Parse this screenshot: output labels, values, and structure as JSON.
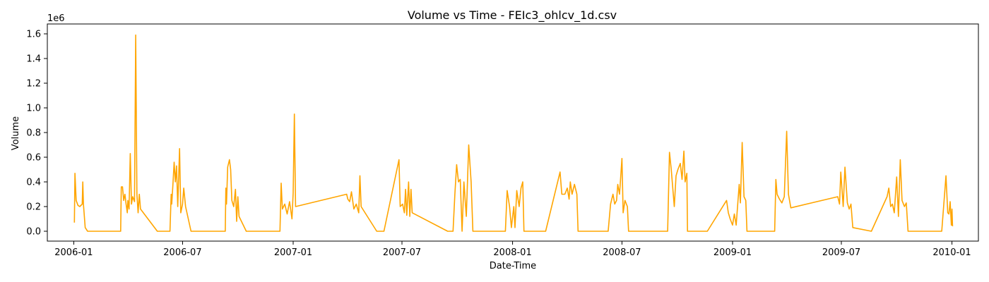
{
  "chart_data": {
    "type": "line",
    "title": "Volume vs Time - FEIc3_ohlcv_1d.csv",
    "xlabel": "Date-Time",
    "ylabel": "Volume",
    "y_offset_label": "1e6",
    "line_color": "#FFA500",
    "grid": false,
    "xlim": [
      "2005-11-18",
      "2010-02-14"
    ],
    "ylim": [
      -0.08,
      1.68
    ],
    "x_ticks": [
      "2006-01",
      "2006-07",
      "2007-01",
      "2007-07",
      "2008-01",
      "2008-07",
      "2009-01",
      "2009-07",
      "2010-01"
    ],
    "y_ticks": [
      "0.0",
      "0.2",
      "0.4",
      "0.6",
      "0.8",
      "1.0",
      "1.2",
      "1.4",
      "1.6"
    ],
    "series": [
      {
        "units": "millions",
        "points": [
          [
            "2006-01-02",
            0.07
          ],
          [
            "2006-01-03",
            0.47
          ],
          [
            "2006-01-05",
            0.25
          ],
          [
            "2006-01-08",
            0.21
          ],
          [
            "2006-01-11",
            0.2
          ],
          [
            "2006-01-15",
            0.22
          ],
          [
            "2006-01-16",
            0.4
          ],
          [
            "2006-01-17",
            0.22
          ],
          [
            "2006-01-20",
            0.03
          ],
          [
            "2006-01-24",
            0.0
          ],
          [
            "2006-03-20",
            0.0
          ],
          [
            "2006-03-21",
            0.36
          ],
          [
            "2006-03-23",
            0.36
          ],
          [
            "2006-03-25",
            0.25
          ],
          [
            "2006-03-27",
            0.3
          ],
          [
            "2006-03-29",
            0.22
          ],
          [
            "2006-03-31",
            0.15
          ],
          [
            "2006-04-01",
            0.25
          ],
          [
            "2006-04-03",
            0.18
          ],
          [
            "2006-04-05",
            0.63
          ],
          [
            "2006-04-07",
            0.22
          ],
          [
            "2006-04-09",
            0.28
          ],
          [
            "2006-04-12",
            0.24
          ],
          [
            "2006-04-14",
            1.59
          ],
          [
            "2006-04-16",
            0.3
          ],
          [
            "2006-04-18",
            0.15
          ],
          [
            "2006-04-20",
            0.3
          ],
          [
            "2006-04-22",
            0.18
          ],
          [
            "2006-05-20",
            0.0
          ],
          [
            "2006-06-10",
            0.0
          ],
          [
            "2006-06-12",
            0.3
          ],
          [
            "2006-06-13",
            0.22
          ],
          [
            "2006-06-15",
            0.38
          ],
          [
            "2006-06-17",
            0.56
          ],
          [
            "2006-06-19",
            0.4
          ],
          [
            "2006-06-21",
            0.53
          ],
          [
            "2006-06-23",
            0.2
          ],
          [
            "2006-06-26",
            0.67
          ],
          [
            "2006-06-28",
            0.15
          ],
          [
            "2006-07-01",
            0.22
          ],
          [
            "2006-07-03",
            0.35
          ],
          [
            "2006-07-06",
            0.2
          ],
          [
            "2006-07-15",
            0.0
          ],
          [
            "2006-09-10",
            0.0
          ],
          [
            "2006-09-11",
            0.35
          ],
          [
            "2006-09-12",
            0.22
          ],
          [
            "2006-09-14",
            0.52
          ],
          [
            "2006-09-17",
            0.58
          ],
          [
            "2006-09-19",
            0.5
          ],
          [
            "2006-09-21",
            0.25
          ],
          [
            "2006-09-24",
            0.2
          ],
          [
            "2006-09-27",
            0.34
          ],
          [
            "2006-09-29",
            0.08
          ],
          [
            "2006-10-01",
            0.28
          ],
          [
            "2006-10-03",
            0.12
          ],
          [
            "2006-10-15",
            0.0
          ],
          [
            "2006-11-25",
            0.0
          ],
          [
            "2006-12-10",
            0.0
          ],
          [
            "2006-12-12",
            0.39
          ],
          [
            "2006-12-14",
            0.18
          ],
          [
            "2006-12-18",
            0.22
          ],
          [
            "2006-12-22",
            0.14
          ],
          [
            "2006-12-26",
            0.24
          ],
          [
            "2006-12-30",
            0.1
          ],
          [
            "2007-01-01",
            0.31
          ],
          [
            "2007-01-03",
            0.95
          ],
          [
            "2007-01-05",
            0.2
          ],
          [
            "2007-03-31",
            0.3
          ],
          [
            "2007-04-02",
            0.26
          ],
          [
            "2007-04-05",
            0.24
          ],
          [
            "2007-04-08",
            0.32
          ],
          [
            "2007-04-12",
            0.18
          ],
          [
            "2007-04-16",
            0.22
          ],
          [
            "2007-04-20",
            0.15
          ],
          [
            "2007-04-22",
            0.45
          ],
          [
            "2007-04-24",
            0.2
          ],
          [
            "2007-05-20",
            0.0
          ],
          [
            "2007-06-01",
            0.0
          ],
          [
            "2007-06-26",
            0.58
          ],
          [
            "2007-06-28",
            0.2
          ],
          [
            "2007-07-02",
            0.22
          ],
          [
            "2007-07-05",
            0.15
          ],
          [
            "2007-07-07",
            0.34
          ],
          [
            "2007-07-09",
            0.13
          ],
          [
            "2007-07-12",
            0.4
          ],
          [
            "2007-07-14",
            0.12
          ],
          [
            "2007-07-16",
            0.34
          ],
          [
            "2007-07-18",
            0.15
          ],
          [
            "2007-09-15",
            0.0
          ],
          [
            "2007-09-24",
            0.0
          ],
          [
            "2007-09-27",
            0.3
          ],
          [
            "2007-09-30",
            0.54
          ],
          [
            "2007-10-03",
            0.4
          ],
          [
            "2007-10-06",
            0.42
          ],
          [
            "2007-10-09",
            0.0
          ],
          [
            "2007-10-12",
            0.4
          ],
          [
            "2007-10-16",
            0.12
          ],
          [
            "2007-10-20",
            0.7
          ],
          [
            "2007-10-24",
            0.4
          ],
          [
            "2007-10-27",
            0.0
          ],
          [
            "2007-12-20",
            0.0
          ],
          [
            "2007-12-23",
            0.33
          ],
          [
            "2007-12-27",
            0.2
          ],
          [
            "2007-12-30",
            0.03
          ],
          [
            "2008-01-03",
            0.2
          ],
          [
            "2008-01-05",
            0.03
          ],
          [
            "2008-01-08",
            0.33
          ],
          [
            "2008-01-12",
            0.2
          ],
          [
            "2008-01-15",
            0.35
          ],
          [
            "2008-01-18",
            0.4
          ],
          [
            "2008-01-20",
            0.0
          ],
          [
            "2008-02-25",
            0.0
          ],
          [
            "2008-03-20",
            0.48
          ],
          [
            "2008-03-23",
            0.3
          ],
          [
            "2008-03-28",
            0.3
          ],
          [
            "2008-04-01",
            0.35
          ],
          [
            "2008-04-04",
            0.26
          ],
          [
            "2008-04-06",
            0.4
          ],
          [
            "2008-04-09",
            0.3
          ],
          [
            "2008-04-13",
            0.38
          ],
          [
            "2008-04-17",
            0.3
          ],
          [
            "2008-04-19",
            0.0
          ],
          [
            "2008-06-08",
            0.0
          ],
          [
            "2008-06-12",
            0.22
          ],
          [
            "2008-06-16",
            0.3
          ],
          [
            "2008-06-19",
            0.22
          ],
          [
            "2008-06-22",
            0.25
          ],
          [
            "2008-06-24",
            0.38
          ],
          [
            "2008-06-27",
            0.3
          ],
          [
            "2008-07-01",
            0.59
          ],
          [
            "2008-07-03",
            0.15
          ],
          [
            "2008-07-06",
            0.25
          ],
          [
            "2008-07-10",
            0.2
          ],
          [
            "2008-07-12",
            0.0
          ],
          [
            "2008-09-15",
            0.0
          ],
          [
            "2008-09-18",
            0.64
          ],
          [
            "2008-09-21",
            0.5
          ],
          [
            "2008-09-26",
            0.2
          ],
          [
            "2008-09-29",
            0.45
          ],
          [
            "2008-10-02",
            0.5
          ],
          [
            "2008-10-06",
            0.55
          ],
          [
            "2008-10-09",
            0.42
          ],
          [
            "2008-10-12",
            0.65
          ],
          [
            "2008-10-14",
            0.4
          ],
          [
            "2008-10-17",
            0.47
          ],
          [
            "2008-10-18",
            0.0
          ],
          [
            "2008-11-20",
            0.0
          ],
          [
            "2008-12-22",
            0.25
          ],
          [
            "2008-12-25",
            0.15
          ],
          [
            "2008-12-28",
            0.1
          ],
          [
            "2009-01-01",
            0.05
          ],
          [
            "2009-01-04",
            0.14
          ],
          [
            "2009-01-07",
            0.05
          ],
          [
            "2009-01-12",
            0.38
          ],
          [
            "2009-01-14",
            0.23
          ],
          [
            "2009-01-17",
            0.72
          ],
          [
            "2009-01-20",
            0.28
          ],
          [
            "2009-01-23",
            0.25
          ],
          [
            "2009-01-25",
            0.0
          ],
          [
            "2009-03-12",
            0.0
          ],
          [
            "2009-03-14",
            0.42
          ],
          [
            "2009-03-16",
            0.3
          ],
          [
            "2009-03-20",
            0.26
          ],
          [
            "2009-03-24",
            0.23
          ],
          [
            "2009-03-28",
            0.28
          ],
          [
            "2009-04-01",
            0.81
          ],
          [
            "2009-04-04",
            0.3
          ],
          [
            "2009-04-08",
            0.19
          ],
          [
            "2009-06-25",
            0.28
          ],
          [
            "2009-06-28",
            0.22
          ],
          [
            "2009-06-30",
            0.48
          ],
          [
            "2009-07-04",
            0.2
          ],
          [
            "2009-07-07",
            0.52
          ],
          [
            "2009-07-11",
            0.23
          ],
          [
            "2009-07-14",
            0.18
          ],
          [
            "2009-07-17",
            0.22
          ],
          [
            "2009-07-20",
            0.03
          ],
          [
            "2009-08-20",
            0.0
          ],
          [
            "2009-09-15",
            0.28
          ],
          [
            "2009-09-18",
            0.35
          ],
          [
            "2009-09-21",
            0.2
          ],
          [
            "2009-09-24",
            0.22
          ],
          [
            "2009-09-27",
            0.15
          ],
          [
            "2009-10-01",
            0.44
          ],
          [
            "2009-10-04",
            0.12
          ],
          [
            "2009-10-07",
            0.58
          ],
          [
            "2009-10-10",
            0.25
          ],
          [
            "2009-10-14",
            0.2
          ],
          [
            "2009-10-17",
            0.23
          ],
          [
            "2009-10-20",
            0.0
          ],
          [
            "2009-12-15",
            0.0
          ],
          [
            "2009-12-22",
            0.45
          ],
          [
            "2009-12-25",
            0.15
          ],
          [
            "2009-12-27",
            0.14
          ],
          [
            "2009-12-29",
            0.24
          ],
          [
            "2009-12-31",
            0.05
          ],
          [
            "2010-01-01",
            0.18
          ],
          [
            "2010-01-02",
            0.04
          ]
        ]
      }
    ]
  }
}
